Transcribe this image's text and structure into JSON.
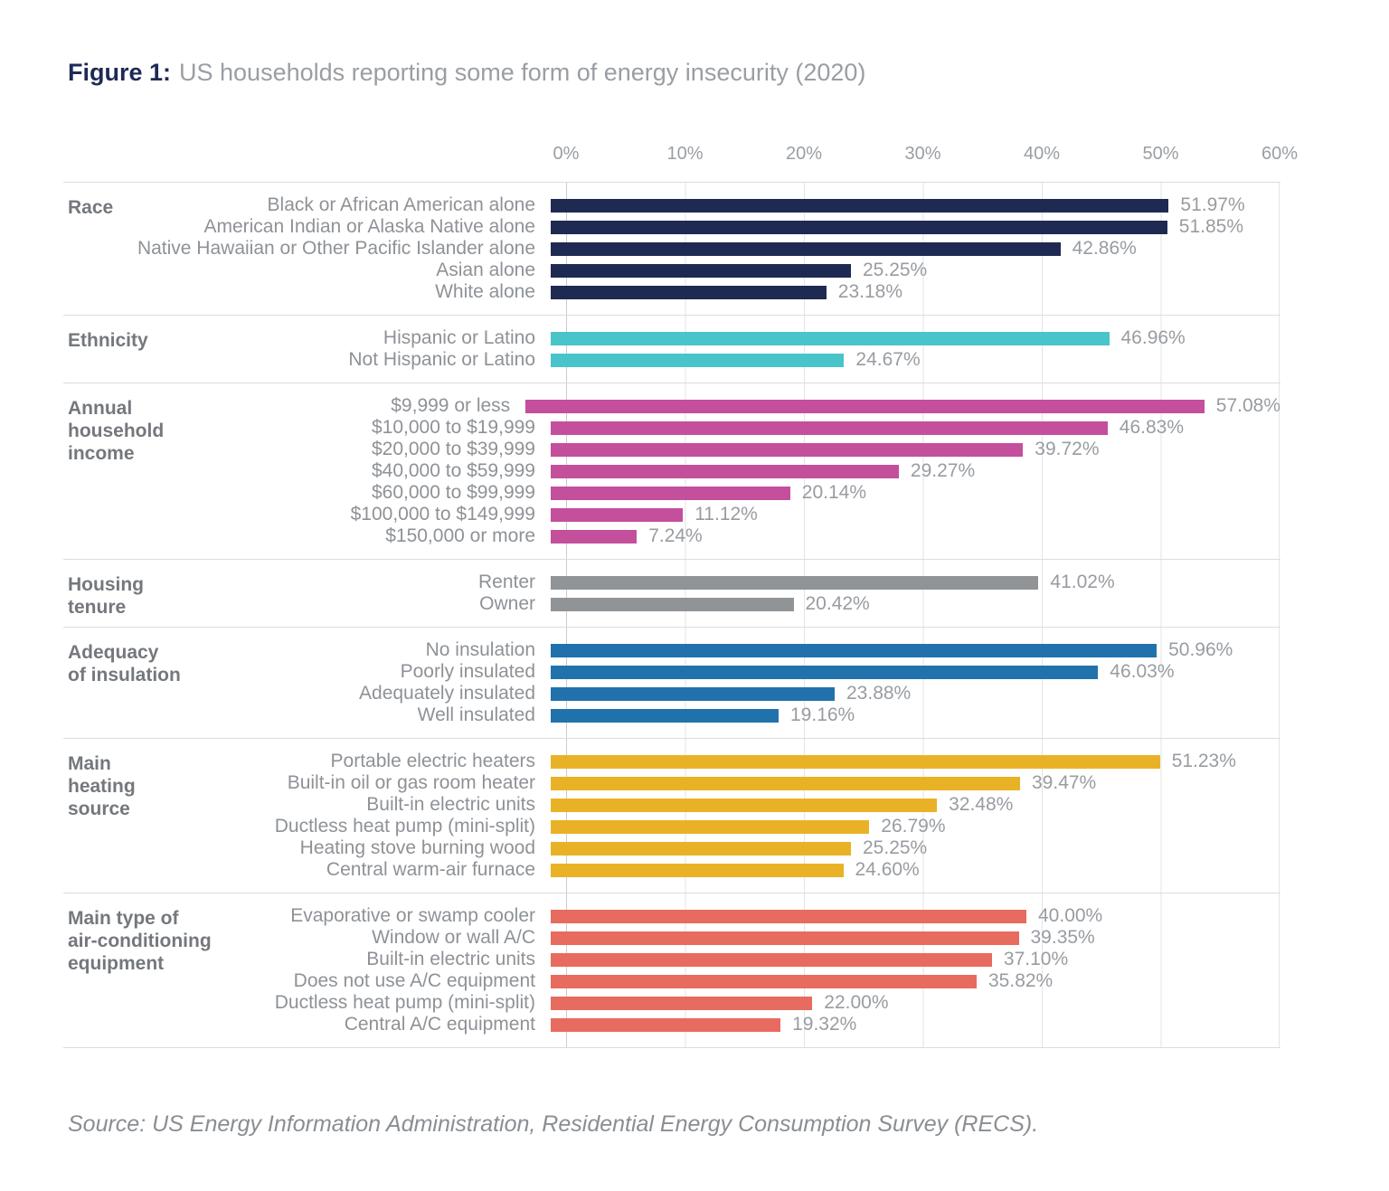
{
  "figure": {
    "label": "Figure 1:",
    "title": "US households reporting some form of energy insecurity (2020)",
    "accent_color": "#1E2A56"
  },
  "source": "Source: US Energy Information Administration, Residential Energy Consumption Survey (RECS).",
  "chart_data": {
    "type": "bar",
    "orientation": "horizontal",
    "title": "US households reporting some form of energy insecurity (2020)",
    "unit": "%",
    "xlim": [
      0,
      60
    ],
    "x_ticks": [
      "0%",
      "10%",
      "20%",
      "30%",
      "40%",
      "50%",
      "60%"
    ],
    "grid": true,
    "sections": [
      {
        "id": "race",
        "group": "Race",
        "group_lines": [
          "Race"
        ],
        "color": "#1F2A52",
        "rows": [
          {
            "label": "Black or African American alone",
            "value": 51.97,
            "display": "51.97%"
          },
          {
            "label": "American Indian or Alaska Native alone",
            "value": 51.85,
            "display": "51.85%"
          },
          {
            "label": "Native Hawaiian or Other Pacific Islander alone",
            "value": 42.86,
            "display": "42.86%"
          },
          {
            "label": "Asian alone",
            "value": 25.25,
            "display": "25.25%"
          },
          {
            "label": "White alone",
            "value": 23.18,
            "display": "23.18%"
          }
        ]
      },
      {
        "id": "ethnicity",
        "group": "Ethnicity",
        "group_lines": [
          "Ethnicity"
        ],
        "color": "#4AC4CB",
        "rows": [
          {
            "label": "Hispanic or Latino",
            "value": 46.96,
            "display": "46.96%"
          },
          {
            "label": "Not Hispanic or Latino",
            "value": 24.67,
            "display": "24.67%"
          }
        ]
      },
      {
        "id": "income",
        "group": "Annual household income",
        "group_lines": [
          "Annual",
          "household",
          "income"
        ],
        "color": "#C44F9C",
        "rows": [
          {
            "label": "$9,999 or less",
            "value": 57.08,
            "display": "57.08%"
          },
          {
            "label": "$10,000 to $19,999",
            "value": 46.83,
            "display": "46.83%"
          },
          {
            "label": "$20,000 to $39,999",
            "value": 39.72,
            "display": "39.72%"
          },
          {
            "label": "$40,000 to $59,999",
            "value": 29.27,
            "display": "29.27%"
          },
          {
            "label": "$60,000 to $99,999",
            "value": 20.14,
            "display": "20.14%"
          },
          {
            "label": "$100,000 to $149,999",
            "value": 11.12,
            "display": "11.12%"
          },
          {
            "label": "$150,000 or more",
            "value": 7.24,
            "display": "7.24%"
          }
        ]
      },
      {
        "id": "housing-tenure",
        "group": "Housing tenure",
        "group_lines": [
          "Housing",
          "tenure"
        ],
        "color": "#909497",
        "rows": [
          {
            "label": "Renter",
            "value": 41.02,
            "display": "41.02%"
          },
          {
            "label": "Owner",
            "value": 20.42,
            "display": "20.42%"
          }
        ]
      },
      {
        "id": "insulation",
        "group": "Adequacy of insulation",
        "group_lines": [
          "Adequacy",
          "of insulation"
        ],
        "color": "#2172AC",
        "rows": [
          {
            "label": "No insulation",
            "value": 50.96,
            "display": "50.96%"
          },
          {
            "label": "Poorly insulated",
            "value": 46.03,
            "display": "46.03%"
          },
          {
            "label": "Adequately insulated",
            "value": 23.88,
            "display": "23.88%"
          },
          {
            "label": "Well insulated",
            "value": 19.16,
            "display": "19.16%"
          }
        ]
      },
      {
        "id": "heating-source",
        "group": "Main heating source",
        "group_lines": [
          "Main",
          "heating",
          "source"
        ],
        "color": "#E9B226",
        "rows": [
          {
            "label": "Portable electric heaters",
            "value": 51.23,
            "display": "51.23%"
          },
          {
            "label": "Built-in oil or gas room heater",
            "value": 39.47,
            "display": "39.47%"
          },
          {
            "label": "Built-in electric units",
            "value": 32.48,
            "display": "32.48%"
          },
          {
            "label": "Ductless heat pump (mini-split)",
            "value": 26.79,
            "display": "26.79%"
          },
          {
            "label": "Heating stove burning wood",
            "value": 25.25,
            "display": "25.25%"
          },
          {
            "label": "Central warm-air furnace",
            "value": 24.6,
            "display": "24.60%"
          }
        ]
      },
      {
        "id": "ac-equipment",
        "group": "Main type of air-conditioning equipment",
        "group_lines": [
          "Main type of",
          "air-conditioning",
          "equipment"
        ],
        "color": "#E86B5F",
        "rows": [
          {
            "label": "Evaporative or swamp cooler",
            "value": 40.0,
            "display": "40.00%"
          },
          {
            "label": "Window or wall A/C",
            "value": 39.35,
            "display": "39.35%"
          },
          {
            "label": "Built-in electric units",
            "value": 37.1,
            "display": "37.10%"
          },
          {
            "label": "Does not use A/C equipment",
            "value": 35.82,
            "display": "35.82%"
          },
          {
            "label": "Ductless heat pump (mini-split)",
            "value": 22.0,
            "display": "22.00%"
          },
          {
            "label": "Central A/C equipment",
            "value": 19.32,
            "display": "19.32%"
          }
        ]
      }
    ]
  }
}
